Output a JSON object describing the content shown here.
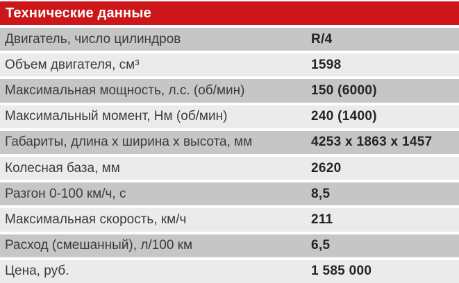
{
  "table": {
    "title": "Технические данные",
    "rows": [
      {
        "label": "Двигатель, число цилиндров",
        "value": "R/4"
      },
      {
        "label": "Объем двигателя, см³",
        "value": "1598"
      },
      {
        "label": "Максимальная мощность, л.с. (об/мин)",
        "value": "150 (6000)"
      },
      {
        "label": "Максимальный момент, Нм (об/мин)",
        "value": "240 (1400)"
      },
      {
        "label": "Габариты, длина x ширина x высота, мм",
        "value": "4253 x 1863 x 1457"
      },
      {
        "label": "Колесная база, мм",
        "value": "2620"
      },
      {
        "label": "Разгон 0-100 км/ч, с",
        "value": "8,5"
      },
      {
        "label": "Максимальная скорость, км/ч",
        "value": "211"
      },
      {
        "label": "Расход (смешанный), л/100 км",
        "value": "6,5"
      },
      {
        "label": "Цена, руб.",
        "value": "1 585 000"
      }
    ],
    "colors": {
      "header_bg": "#cd1619",
      "header_text": "#ffffff",
      "row_gray": "#c6c6c6",
      "row_light": "#ebebeb",
      "label_text": "#3b3b3b",
      "value_text": "#242424"
    }
  }
}
